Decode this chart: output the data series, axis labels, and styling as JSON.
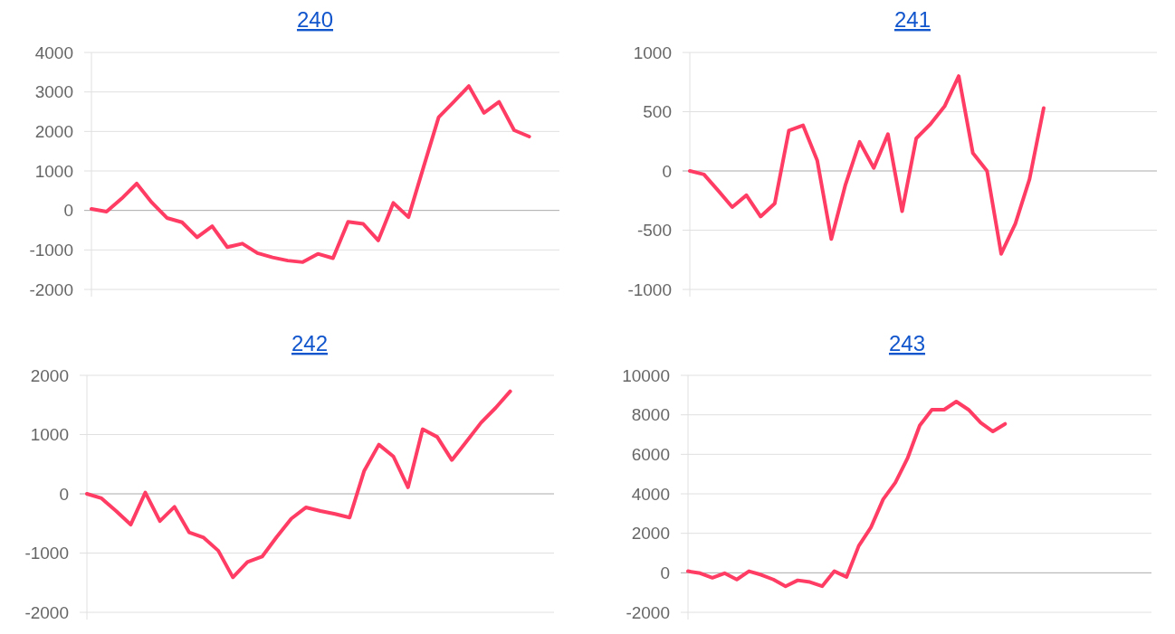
{
  "chart_data": [
    {
      "type": "line",
      "title": "240",
      "categories": [
        null,
        null,
        null,
        null,
        null,
        null,
        null,
        null,
        null,
        null,
        null,
        null,
        null,
        null,
        null,
        null,
        null,
        null,
        null,
        null,
        null,
        null,
        null,
        null,
        null,
        null,
        null,
        null,
        null,
        null,
        null,
        null
      ],
      "values": [
        40,
        -30,
        300,
        680,
        200,
        -190,
        -300,
        -680,
        -400,
        -930,
        -840,
        -1080,
        -1190,
        -1270,
        -1310,
        -1100,
        -1210,
        -290,
        -340,
        -760,
        190,
        -170,
        1100,
        2360,
        2750,
        3150,
        2470,
        2750,
        2030,
        1870,
        null,
        null
      ],
      "color": "#ff3d64",
      "ylim": [
        -2000,
        4000
      ],
      "yticks": [
        -2000,
        -1000,
        0,
        1000,
        2000,
        3000,
        4000
      ],
      "grid": "y",
      "tick_labels": "y"
    },
    {
      "type": "line",
      "title": "241",
      "categories": [
        null,
        null,
        null,
        null,
        null,
        null,
        null,
        null,
        null,
        null,
        null,
        null,
        null,
        null,
        null,
        null,
        null,
        null,
        null,
        null,
        null,
        null,
        null,
        null,
        null,
        null,
        null,
        null,
        null,
        null,
        null,
        null,
        null,
        null
      ],
      "values": [
        0,
        -30,
        -165,
        -305,
        -205,
        -385,
        -275,
        340,
        385,
        90,
        -575,
        -115,
        245,
        25,
        310,
        -340,
        275,
        395,
        545,
        800,
        150,
        0,
        -700,
        -445,
        -70,
        530,
        null,
        null,
        null,
        null,
        null,
        null,
        null,
        null
      ],
      "color": "#ff3d64",
      "ylim": [
        -1000,
        1000
      ],
      "yticks": [
        -1000,
        -500,
        0,
        500,
        1000
      ],
      "grid": "y",
      "tick_labels": "y"
    },
    {
      "type": "line",
      "title": "242",
      "categories": [
        null,
        null,
        null,
        null,
        null,
        null,
        null,
        null,
        null,
        null,
        null,
        null,
        null,
        null,
        null,
        null,
        null,
        null,
        null,
        null,
        null,
        null,
        null,
        null,
        null,
        null,
        null,
        null,
        null,
        null,
        null,
        null,
        null
      ],
      "values": [
        0,
        -75,
        -290,
        -520,
        20,
        -460,
        -220,
        -650,
        -740,
        -960,
        -1410,
        -1150,
        -1060,
        -730,
        -420,
        -230,
        -290,
        -340,
        -400,
        390,
        830,
        630,
        110,
        1090,
        960,
        570,
        880,
        1200,
        1450,
        1730,
        null,
        null,
        null
      ],
      "color": "#ff3d64",
      "ylim": [
        -2000,
        2000
      ],
      "yticks": [
        -2000,
        -1000,
        0,
        1000,
        2000
      ],
      "grid": "y",
      "tick_labels": "y"
    },
    {
      "type": "line",
      "title": "243",
      "categories": [
        null,
        null,
        null,
        null,
        null,
        null,
        null,
        null,
        null,
        null,
        null,
        null,
        null,
        null,
        null,
        null,
        null,
        null,
        null,
        null,
        null,
        null,
        null,
        null,
        null,
        null,
        null,
        null,
        null,
        null,
        null,
        null,
        null,
        null,
        null,
        null,
        null,
        null,
        null
      ],
      "values": [
        80,
        -20,
        -250,
        -20,
        -340,
        80,
        -100,
        -340,
        -680,
        -380,
        -470,
        -680,
        80,
        -210,
        1360,
        2300,
        3720,
        4570,
        5800,
        7460,
        8260,
        8260,
        8670,
        8260,
        7600,
        7160,
        7540,
        null,
        null,
        null,
        null,
        null,
        null,
        null,
        null,
        null,
        null,
        null,
        null
      ],
      "color": "#ff3d64",
      "ylim": [
        -2000,
        10000
      ],
      "yticks": [
        -2000,
        0,
        2000,
        4000,
        6000,
        8000,
        10000
      ],
      "grid": "y",
      "tick_labels": "y"
    }
  ]
}
